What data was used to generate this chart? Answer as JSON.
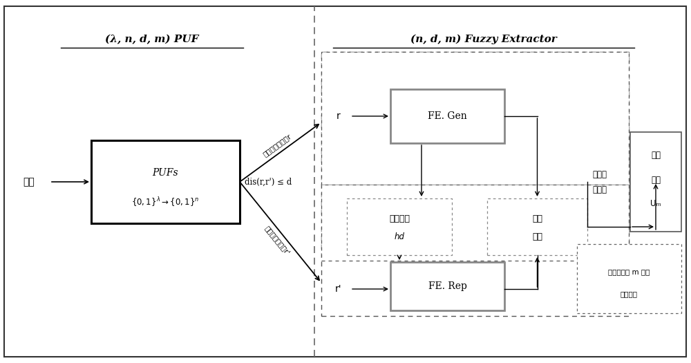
{
  "fig_width": 10.0,
  "fig_height": 5.25,
  "title_puf": "(λ, n, d, m) PUF",
  "title_fe": "(n, d, m) Fuzzy Extractor",
  "label_jioli": "激励",
  "label_pufs_line1": "PUFs",
  "label_first_response": "第一次计算响应r",
  "label_dist": "dis(r,r') ≤ d",
  "label_second_response": "第二次计算响应r'",
  "label_r": "r",
  "label_r_prime": "r'",
  "label_fe_gen": "FE. Gen",
  "label_help_info_1": "帮助信息",
  "label_help_info_2": "hd",
  "label_secret_1": "秘密",
  "label_secret_2": "信息",
  "label_fe_rep": "FE. Rep",
  "label_calc_indist_1": "计算不",
  "label_calc_indist_2": "可区分",
  "label_random_1": "随机",
  "label_random_2": "分布",
  "label_random_3": "Uₘ",
  "label_when_1": "当响应含有 m 比特",
  "label_when_2": "的最小熔"
}
